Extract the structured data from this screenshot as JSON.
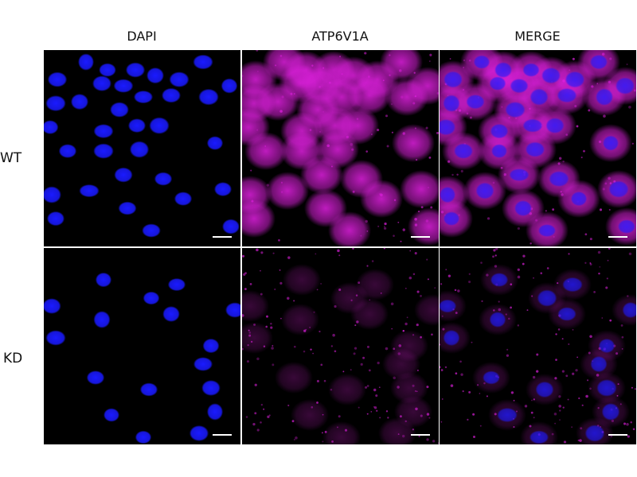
{
  "columns": [
    {
      "label": "DAPI",
      "channel": "dapi"
    },
    {
      "label": "ATP6V1A",
      "channel": "atp"
    },
    {
      "label": "MERGE",
      "channel": "merge"
    }
  ],
  "rows": [
    {
      "label": "WT",
      "atp_intensity": 0.85
    },
    {
      "label": "KD",
      "atp_intensity": 0.25
    }
  ],
  "colors": {
    "dapi": "#1a1aff",
    "atp": "#e020e0",
    "background": "#000000",
    "scale_bar": "#ffffff"
  }
}
